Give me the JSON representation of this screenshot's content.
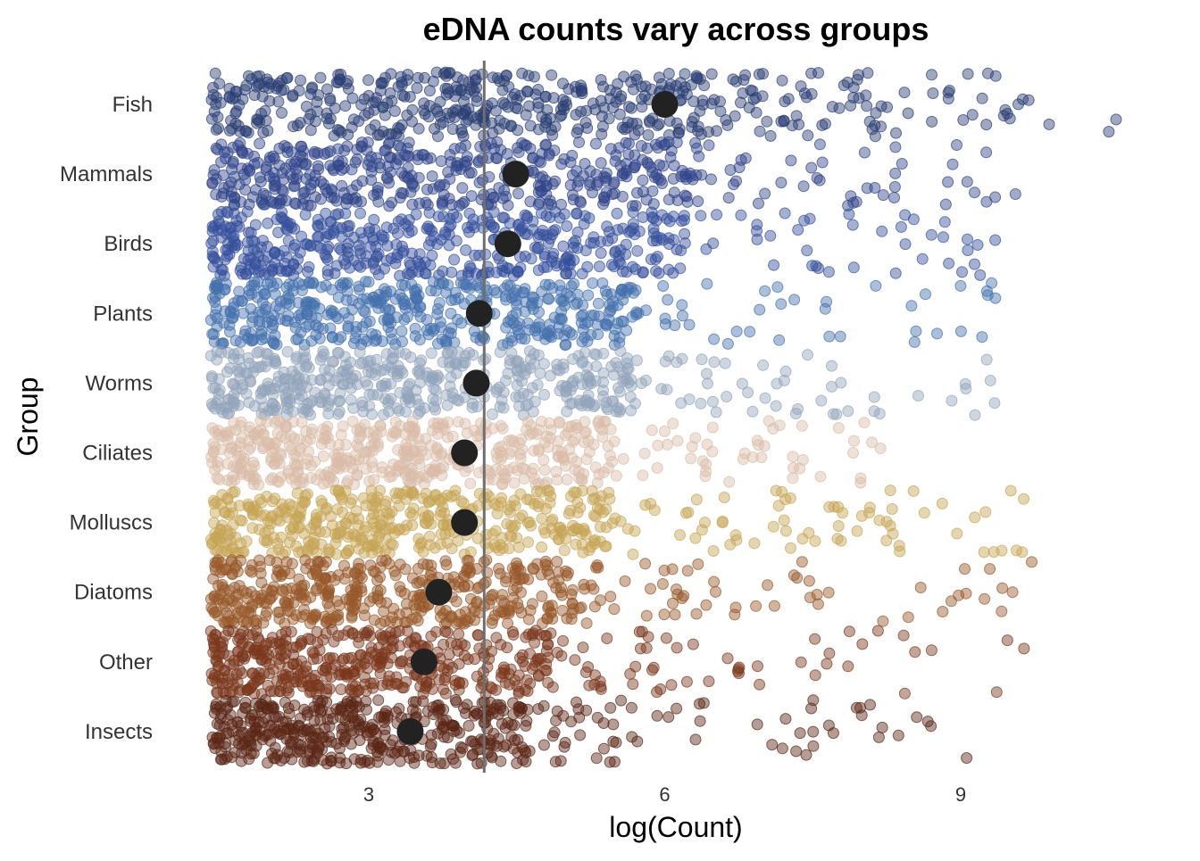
{
  "chart_data": {
    "type": "scatter",
    "subtype": "jittered strip plot with group means",
    "title": "eDNA counts vary across groups",
    "xlabel": "log(Count)",
    "ylabel": "Group",
    "xlim": [
      1.2,
      11.0
    ],
    "xticks": [
      3,
      6,
      9
    ],
    "xtick_labels": [
      "3",
      "6",
      "9"
    ],
    "grid": false,
    "overall_mean_line": 4.17,
    "point_alpha": 0.45,
    "points_per_group_approx": 500,
    "groups": [
      {
        "name": "Fish",
        "mean": 6.0,
        "min": 1.4,
        "max": 10.81,
        "color": "#2b3f73"
      },
      {
        "name": "Mammals",
        "mean": 4.49,
        "min": 1.4,
        "max": 9.6,
        "color": "#31458a"
      },
      {
        "name": "Birds",
        "mean": 4.41,
        "min": 1.4,
        "max": 9.38,
        "color": "#36509c"
      },
      {
        "name": "Plants",
        "mean": 4.12,
        "min": 1.4,
        "max": 9.38,
        "color": "#4570ad"
      },
      {
        "name": "Worms",
        "mean": 4.09,
        "min": 1.4,
        "max": 9.6,
        "color": "#93a4ba"
      },
      {
        "name": "Ciliates",
        "mean": 3.97,
        "min": 1.4,
        "max": 8.25,
        "color": "#d9bca8"
      },
      {
        "name": "Molluscs",
        "mean": 3.97,
        "min": 1.4,
        "max": 9.71,
        "color": "#c6a555"
      },
      {
        "name": "Diatoms",
        "mean": 3.71,
        "min": 1.4,
        "max": 9.98,
        "color": "#97582a"
      },
      {
        "name": "Other",
        "mean": 3.56,
        "min": 1.4,
        "max": 9.98,
        "color": "#7a371d"
      },
      {
        "name": "Insects",
        "mean": 3.42,
        "min": 1.4,
        "max": 9.06,
        "color": "#5a2616"
      }
    ],
    "mean_marker_color": "#222222",
    "mean_line_color": "#6e6e6e"
  }
}
